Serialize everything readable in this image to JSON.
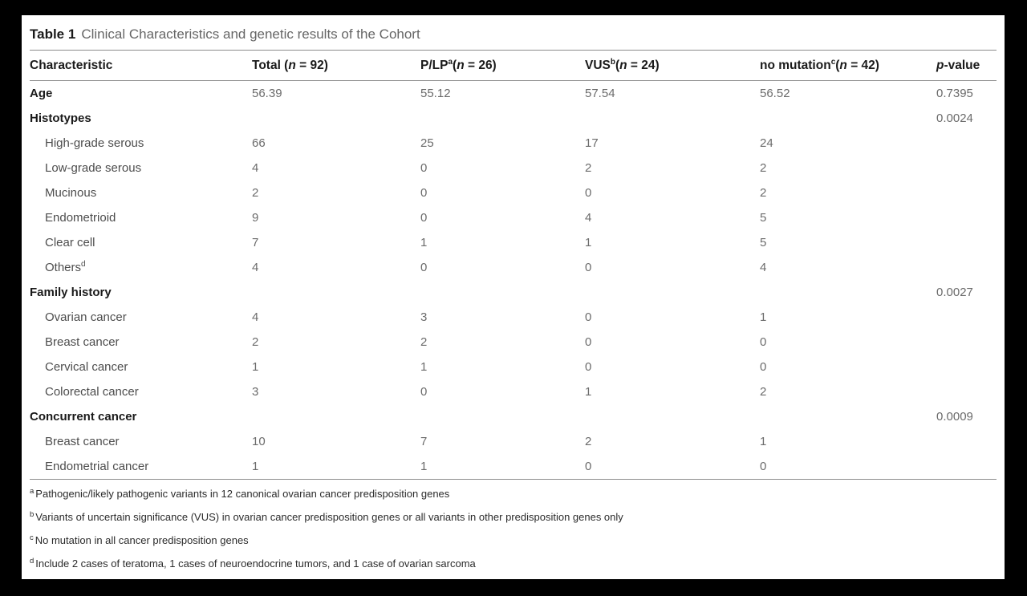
{
  "table": {
    "label": "Table 1",
    "title": "Clinical Characteristics and genetic results of the Cohort",
    "header": [
      {
        "name": "characteristic",
        "segments": [
          {
            "t": "Characteristic"
          }
        ]
      },
      {
        "name": "total",
        "segments": [
          {
            "t": "Total ("
          },
          {
            "t": "n",
            "s": "i"
          },
          {
            "t": " = 92)"
          }
        ]
      },
      {
        "name": "p-lp",
        "segments": [
          {
            "t": "P/LP"
          },
          {
            "t": "a",
            "s": "sup"
          },
          {
            "t": "("
          },
          {
            "t": "n",
            "s": "i"
          },
          {
            "t": " = 26)"
          }
        ]
      },
      {
        "name": "vus",
        "segments": [
          {
            "t": "VUS"
          },
          {
            "t": "b",
            "s": "sup"
          },
          {
            "t": "("
          },
          {
            "t": "n",
            "s": "i"
          },
          {
            "t": " = 24)"
          }
        ]
      },
      {
        "name": "no-mutation",
        "segments": [
          {
            "t": "no mutation"
          },
          {
            "t": "c",
            "s": "sup"
          },
          {
            "t": "("
          },
          {
            "t": "n",
            "s": "i"
          },
          {
            "t": " = 42)"
          }
        ]
      },
      {
        "name": "p-value",
        "segments": [
          {
            "t": "p",
            "s": "i"
          },
          {
            "t": "-value"
          }
        ]
      }
    ],
    "rows": [
      {
        "label": "Age",
        "bold": true,
        "values": [
          "56.39",
          "55.12",
          "57.54",
          "56.52"
        ],
        "p": "0.7395"
      },
      {
        "label": "Histotypes",
        "bold": true,
        "values": [
          "",
          "",
          "",
          ""
        ],
        "p": "0.0024"
      },
      {
        "label": "High-grade serous",
        "indent": true,
        "values": [
          "66",
          "25",
          "17",
          "24"
        ],
        "p": ""
      },
      {
        "label": "Low-grade serous",
        "indent": true,
        "values": [
          "4",
          "0",
          "2",
          "2"
        ],
        "p": ""
      },
      {
        "label": "Mucinous",
        "indent": true,
        "values": [
          "2",
          "0",
          "0",
          "2"
        ],
        "p": ""
      },
      {
        "label": "Endometrioid",
        "indent": true,
        "values": [
          "9",
          "0",
          "4",
          "5"
        ],
        "p": ""
      },
      {
        "label": "Clear cell",
        "indent": true,
        "values": [
          "7",
          "1",
          "1",
          "5"
        ],
        "p": ""
      },
      {
        "label": "Others",
        "sup": "d",
        "indent": true,
        "values": [
          "4",
          "0",
          "0",
          "4"
        ],
        "p": ""
      },
      {
        "label": "Family history",
        "bold": true,
        "values": [
          "",
          "",
          "",
          ""
        ],
        "p": "0.0027"
      },
      {
        "label": "Ovarian cancer",
        "indent": true,
        "values": [
          "4",
          "3",
          "0",
          "1"
        ],
        "p": ""
      },
      {
        "label": "Breast cancer",
        "indent": true,
        "values": [
          "2",
          "2",
          "0",
          "0"
        ],
        "p": ""
      },
      {
        "label": "Cervical cancer",
        "indent": true,
        "values": [
          "1",
          "1",
          "0",
          "0"
        ],
        "p": ""
      },
      {
        "label": "Colorectal cancer",
        "indent": true,
        "values": [
          "3",
          "0",
          "1",
          "2"
        ],
        "p": ""
      },
      {
        "label": "Concurrent cancer",
        "bold": true,
        "values": [
          "",
          "",
          "",
          ""
        ],
        "p": "0.0009"
      },
      {
        "label": "Breast cancer",
        "indent": true,
        "values": [
          "10",
          "7",
          "2",
          "1"
        ],
        "p": ""
      },
      {
        "label": "Endometrial cancer",
        "indent": true,
        "values": [
          "1",
          "1",
          "0",
          "0"
        ],
        "p": ""
      }
    ],
    "footnotes": [
      {
        "sup": "a",
        "text": "Pathogenic/likely pathogenic variants in 12 canonical ovarian cancer predisposition genes"
      },
      {
        "sup": "b",
        "text": "Variants of uncertain significance (VUS) in ovarian cancer predisposition genes or all variants in other predisposition genes only"
      },
      {
        "sup": "c",
        "text": "No mutation in all cancer predisposition genes"
      },
      {
        "sup": "d",
        "text": "Include 2 cases of teratoma, 1 cases of neuroendocrine tumors, and 1 case of ovarian sarcoma"
      }
    ]
  },
  "colors": {
    "frame": "#000000",
    "sheet": "#ffffff",
    "rule": "#8c8c8c",
    "heading_text": "#1a1a1a",
    "muted_text": "#666666",
    "label_text": "#4d4d4d",
    "value_text": "#6b6b6b",
    "footnote_text": "#2b2b2b"
  }
}
